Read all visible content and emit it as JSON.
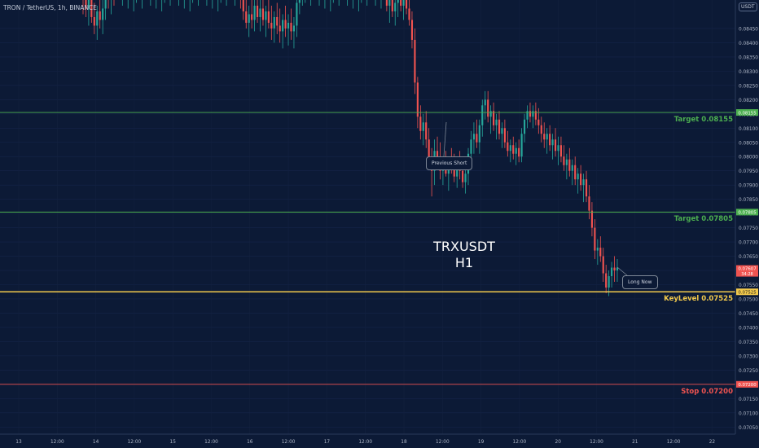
{
  "title": "TRON / TetherUS, 1h, BINANCE",
  "symbol_line1": "TRXUSDT",
  "symbol_line2": "H1",
  "currency_box": "USDT",
  "annotations": {
    "previous_short": "Previous Short",
    "long_now": "Long Now"
  },
  "colors": {
    "background": "#0c1a36",
    "up": "#26a69a",
    "down": "#ef5350",
    "target_line": "#4caf50",
    "keylevel_line": "#f2c94c",
    "stop_line": "#ef5350"
  },
  "chart_data": {
    "type": "candlestick",
    "title": "TRON / TetherUS, 1h, BINANCE",
    "ylim": [
      0.07025,
      0.0855
    ],
    "y_ticks": [
      "0.08450",
      "0.08400",
      "0.08350",
      "0.08300",
      "0.08250",
      "0.08200",
      "0.08150",
      "0.08100",
      "0.08050",
      "0.08000",
      "0.07950",
      "0.07900",
      "0.07850",
      "0.07800",
      "0.07750",
      "0.07700",
      "0.07650",
      "0.07600",
      "0.07550",
      "0.07500",
      "0.07450",
      "0.07400",
      "0.07350",
      "0.07300",
      "0.07250",
      "0.07200",
      "0.07150",
      "0.07100",
      "0.07050"
    ],
    "x_ticks": [
      "13",
      "12:00",
      "14",
      "12:00",
      "15",
      "12:00",
      "16",
      "12:00",
      "17",
      "12:00",
      "18",
      "12:00",
      "19",
      "12:00",
      "20",
      "12:00",
      "21",
      "12:00",
      "22"
    ],
    "horizontal_levels": [
      {
        "label": "Target 0.08155",
        "value": 0.08155,
        "tag": "0.08155",
        "kind": "target"
      },
      {
        "label": "Target 0.07805",
        "value": 0.07805,
        "tag": "0.07805",
        "kind": "target"
      },
      {
        "label": "KeyLevel 0.07525",
        "value": 0.07525,
        "tag": "0.07525",
        "kind": "keylevel"
      },
      {
        "label": "Stop 0.07200",
        "value": 0.072,
        "tag": "0.07200",
        "kind": "stop"
      }
    ],
    "current_price": {
      "value": 0.07607,
      "tag": "0.07607",
      "countdown": "34:28"
    },
    "candles": [
      [
        0.0857,
        0.0862,
        0.085,
        0.0855
      ],
      [
        0.0855,
        0.086,
        0.0849,
        0.0852
      ],
      [
        0.0852,
        0.0858,
        0.0846,
        0.0856
      ],
      [
        0.0856,
        0.0861,
        0.0847,
        0.0849
      ],
      [
        0.0849,
        0.0854,
        0.0843,
        0.0846
      ],
      [
        0.0846,
        0.0853,
        0.0841,
        0.0851
      ],
      [
        0.0851,
        0.0858,
        0.0845,
        0.0848
      ],
      [
        0.0848,
        0.0855,
        0.0843,
        0.0852
      ],
      [
        0.0852,
        0.086,
        0.0848,
        0.0857
      ],
      [
        0.0857,
        0.0863,
        0.0852,
        0.0855
      ],
      [
        0.0855,
        0.0862,
        0.085,
        0.0859
      ],
      [
        0.0859,
        0.0865,
        0.0853,
        0.0856
      ],
      [
        0.086,
        0.0866,
        0.0855,
        0.0862
      ],
      [
        0.0862,
        0.0867,
        0.0857,
        0.0859
      ],
      [
        0.0859,
        0.0864,
        0.0853,
        0.0861
      ],
      [
        0.0861,
        0.0866,
        0.0856,
        0.0858
      ],
      [
        0.0858,
        0.0864,
        0.0852,
        0.086
      ],
      [
        0.086,
        0.0865,
        0.0855,
        0.0857
      ],
      [
        0.0857,
        0.0863,
        0.0851,
        0.0859
      ],
      [
        0.0859,
        0.0865,
        0.0854,
        0.0861
      ],
      [
        0.0861,
        0.0866,
        0.0856,
        0.0858
      ],
      [
        0.0858,
        0.0863,
        0.0852,
        0.086
      ],
      [
        0.086,
        0.0866,
        0.0855,
        0.0862
      ],
      [
        0.0862,
        0.0867,
        0.0857,
        0.0859
      ],
      [
        0.0859,
        0.0864,
        0.0853,
        0.0861
      ],
      [
        0.0861,
        0.0866,
        0.0856,
        0.0858
      ],
      [
        0.0858,
        0.0864,
        0.0852,
        0.086
      ],
      [
        0.086,
        0.0865,
        0.0855,
        0.0857
      ],
      [
        0.0857,
        0.0862,
        0.0851,
        0.0859
      ],
      [
        0.0859,
        0.0864,
        0.0854,
        0.0861
      ],
      [
        0.0861,
        0.0866,
        0.0856,
        0.0858
      ],
      [
        0.0858,
        0.0863,
        0.0853,
        0.086
      ],
      [
        0.086,
        0.0866,
        0.0855,
        0.0862
      ],
      [
        0.0862,
        0.0867,
        0.0857,
        0.0859
      ],
      [
        0.0859,
        0.0864,
        0.0853,
        0.0861
      ],
      [
        0.0861,
        0.0866,
        0.0856,
        0.0858
      ],
      [
        0.0858,
        0.0864,
        0.0852,
        0.086
      ],
      [
        0.086,
        0.0865,
        0.0855,
        0.0857
      ],
      [
        0.0857,
        0.0862,
        0.0851,
        0.0859
      ],
      [
        0.0859,
        0.0864,
        0.0854,
        0.0861
      ],
      [
        0.0861,
        0.0866,
        0.0856,
        0.0858
      ],
      [
        0.0858,
        0.0863,
        0.0853,
        0.086
      ],
      [
        0.086,
        0.0866,
        0.0855,
        0.0862
      ],
      [
        0.0862,
        0.0867,
        0.0857,
        0.0859
      ],
      [
        0.0859,
        0.0864,
        0.0853,
        0.0861
      ],
      [
        0.0861,
        0.0866,
        0.0856,
        0.0858
      ],
      [
        0.0858,
        0.0864,
        0.0852,
        0.086
      ],
      [
        0.086,
        0.0865,
        0.0855,
        0.0857
      ],
      [
        0.0857,
        0.0862,
        0.0851,
        0.0859
      ],
      [
        0.0859,
        0.0864,
        0.0854,
        0.0861
      ],
      [
        0.0861,
        0.0866,
        0.0856,
        0.0858
      ],
      [
        0.0858,
        0.0863,
        0.0853,
        0.086
      ],
      [
        0.086,
        0.0866,
        0.0855,
        0.0862
      ],
      [
        0.0862,
        0.0867,
        0.0857,
        0.0859
      ],
      [
        0.0859,
        0.0864,
        0.0853,
        0.0861
      ],
      [
        0.0861,
        0.0866,
        0.0856,
        0.0858
      ],
      [
        0.0858,
        0.0863,
        0.0852,
        0.0855
      ],
      [
        0.0855,
        0.086,
        0.0848,
        0.0851
      ],
      [
        0.0851,
        0.0856,
        0.0845,
        0.0847
      ],
      [
        0.0847,
        0.0853,
        0.0842,
        0.085
      ],
      [
        0.085,
        0.0855,
        0.0845,
        0.0848
      ],
      [
        0.0848,
        0.0856,
        0.0844,
        0.0853
      ],
      [
        0.0853,
        0.0858,
        0.0847,
        0.0849
      ],
      [
        0.0849,
        0.0855,
        0.0844,
        0.0852
      ],
      [
        0.0852,
        0.0857,
        0.0846,
        0.0848
      ],
      [
        0.0848,
        0.0853,
        0.0842,
        0.0851
      ],
      [
        0.0851,
        0.0856,
        0.0845,
        0.0847
      ],
      [
        0.0847,
        0.0853,
        0.0841,
        0.0845
      ],
      [
        0.0845,
        0.0851,
        0.084,
        0.0849
      ],
      [
        0.0849,
        0.0854,
        0.0843,
        0.0846
      ],
      [
        0.0846,
        0.0852,
        0.084,
        0.0844
      ],
      [
        0.0844,
        0.085,
        0.0838,
        0.0848
      ],
      [
        0.0848,
        0.0853,
        0.0842,
        0.0845
      ],
      [
        0.0845,
        0.085,
        0.0839,
        0.0847
      ],
      [
        0.0847,
        0.0852,
        0.0841,
        0.0844
      ],
      [
        0.0844,
        0.0849,
        0.0838,
        0.0846
      ],
      [
        0.0846,
        0.0856,
        0.0842,
        0.0854
      ],
      [
        0.0854,
        0.086,
        0.085,
        0.0857
      ],
      [
        0.0857,
        0.0862,
        0.0853,
        0.0859
      ],
      [
        0.0859,
        0.0864,
        0.0854,
        0.0861
      ],
      [
        0.0861,
        0.0866,
        0.0856,
        0.0858
      ],
      [
        0.0858,
        0.0863,
        0.0853,
        0.086
      ],
      [
        0.086,
        0.0865,
        0.0855,
        0.0862
      ],
      [
        0.0862,
        0.0867,
        0.0857,
        0.0859
      ],
      [
        0.0859,
        0.0864,
        0.0853,
        0.0861
      ],
      [
        0.0861,
        0.0866,
        0.0856,
        0.0858
      ],
      [
        0.0858,
        0.0864,
        0.0852,
        0.086
      ],
      [
        0.086,
        0.0865,
        0.0855,
        0.0857
      ],
      [
        0.0857,
        0.0862,
        0.0851,
        0.0859
      ],
      [
        0.0859,
        0.0864,
        0.0854,
        0.0861
      ],
      [
        0.0861,
        0.0866,
        0.0856,
        0.0858
      ],
      [
        0.0858,
        0.0863,
        0.0853,
        0.086
      ],
      [
        0.086,
        0.0866,
        0.0855,
        0.0862
      ],
      [
        0.0862,
        0.0867,
        0.0857,
        0.0859
      ],
      [
        0.0859,
        0.0864,
        0.0853,
        0.0861
      ],
      [
        0.0861,
        0.0866,
        0.0856,
        0.0858
      ],
      [
        0.0858,
        0.0864,
        0.0852,
        0.086
      ],
      [
        0.086,
        0.0865,
        0.0855,
        0.0857
      ],
      [
        0.0857,
        0.0862,
        0.0851,
        0.0859
      ],
      [
        0.0859,
        0.0864,
        0.0854,
        0.0861
      ],
      [
        0.0861,
        0.0866,
        0.0856,
        0.0858
      ],
      [
        0.0858,
        0.0863,
        0.0853,
        0.086
      ],
      [
        0.086,
        0.0866,
        0.0855,
        0.0862
      ],
      [
        0.0862,
        0.0867,
        0.0857,
        0.0859
      ],
      [
        0.0859,
        0.0864,
        0.0853,
        0.0861
      ],
      [
        0.0861,
        0.0866,
        0.0856,
        0.0858
      ],
      [
        0.0858,
        0.0864,
        0.0852,
        0.086
      ],
      [
        0.086,
        0.0865,
        0.0855,
        0.0857
      ],
      [
        0.0857,
        0.0861,
        0.0851,
        0.0853
      ],
      [
        0.0853,
        0.0858,
        0.0847,
        0.0855
      ],
      [
        0.0855,
        0.086,
        0.0849,
        0.0851
      ],
      [
        0.0851,
        0.0857,
        0.0846,
        0.0854
      ],
      [
        0.0854,
        0.0859,
        0.0849,
        0.0856
      ],
      [
        0.0856,
        0.0861,
        0.0851,
        0.0853
      ],
      [
        0.0853,
        0.0858,
        0.0848,
        0.0855
      ],
      [
        0.0855,
        0.086,
        0.085,
        0.0852
      ],
      [
        0.0852,
        0.0856,
        0.0846,
        0.0848
      ],
      [
        0.0848,
        0.0851,
        0.0838,
        0.0841
      ],
      [
        0.0841,
        0.0845,
        0.0822,
        0.0826
      ],
      [
        0.0826,
        0.0828,
        0.081,
        0.0814
      ],
      [
        0.0814,
        0.0818,
        0.0806,
        0.0809
      ],
      [
        0.0809,
        0.0815,
        0.0804,
        0.0812
      ],
      [
        0.0812,
        0.0816,
        0.0803,
        0.0806
      ],
      [
        0.0806,
        0.081,
        0.0796,
        0.0799
      ],
      [
        0.0799,
        0.0803,
        0.0786,
        0.0795
      ],
      [
        0.0795,
        0.0806,
        0.079,
        0.0802
      ],
      [
        0.0802,
        0.0807,
        0.0797,
        0.08
      ],
      [
        0.08,
        0.0805,
        0.0792,
        0.0795
      ],
      [
        0.0795,
        0.08,
        0.079,
        0.0797
      ],
      [
        0.0797,
        0.0802,
        0.0793,
        0.0794
      ],
      [
        0.0794,
        0.08,
        0.0788,
        0.0798
      ],
      [
        0.0798,
        0.0803,
        0.0794,
        0.0796
      ],
      [
        0.0796,
        0.0801,
        0.0791,
        0.0793
      ],
      [
        0.0793,
        0.0799,
        0.0789,
        0.0797
      ],
      [
        0.0797,
        0.0802,
        0.0792,
        0.0795
      ],
      [
        0.0795,
        0.08,
        0.0789,
        0.0791
      ],
      [
        0.0791,
        0.0797,
        0.0787,
        0.0794
      ],
      [
        0.0794,
        0.0803,
        0.079,
        0.0801
      ],
      [
        0.0801,
        0.0809,
        0.0797,
        0.0806
      ],
      [
        0.0806,
        0.0812,
        0.0801,
        0.0808
      ],
      [
        0.0808,
        0.0813,
        0.0803,
        0.0805
      ],
      [
        0.0805,
        0.0813,
        0.0801,
        0.0811
      ],
      [
        0.0811,
        0.082,
        0.0807,
        0.0818
      ],
      [
        0.0818,
        0.0823,
        0.0813,
        0.082
      ],
      [
        0.082,
        0.0823,
        0.0812,
        0.0814
      ],
      [
        0.0814,
        0.0818,
        0.0808,
        0.0816
      ],
      [
        0.0816,
        0.0819,
        0.0809,
        0.0811
      ],
      [
        0.0811,
        0.0815,
        0.0806,
        0.0813
      ],
      [
        0.0813,
        0.0816,
        0.0806,
        0.0808
      ],
      [
        0.0808,
        0.0812,
        0.0803,
        0.081
      ],
      [
        0.081,
        0.0813,
        0.0803,
        0.0805
      ],
      [
        0.0805,
        0.0809,
        0.08,
        0.0802
      ],
      [
        0.0802,
        0.0806,
        0.0798,
        0.0804
      ],
      [
        0.0804,
        0.0807,
        0.0799,
        0.0801
      ],
      [
        0.0801,
        0.0805,
        0.0797,
        0.0803
      ],
      [
        0.0803,
        0.0806,
        0.0798,
        0.08
      ],
      [
        0.08,
        0.081,
        0.0798,
        0.0808
      ],
      [
        0.0808,
        0.0815,
        0.0805,
        0.0813
      ],
      [
        0.0813,
        0.0818,
        0.081,
        0.0816
      ],
      [
        0.0816,
        0.0819,
        0.0812,
        0.0814
      ],
      [
        0.0814,
        0.0818,
        0.081,
        0.0816
      ],
      [
        0.0816,
        0.0819,
        0.0811,
        0.0813
      ],
      [
        0.0813,
        0.0817,
        0.0808,
        0.0811
      ],
      [
        0.0811,
        0.0814,
        0.0805,
        0.0808
      ],
      [
        0.0808,
        0.0812,
        0.0803,
        0.0806
      ],
      [
        0.0806,
        0.081,
        0.0801,
        0.0808
      ],
      [
        0.0808,
        0.0811,
        0.0802,
        0.0804
      ],
      [
        0.0804,
        0.0808,
        0.0799,
        0.0806
      ],
      [
        0.0806,
        0.081,
        0.08,
        0.0802
      ],
      [
        0.0802,
        0.0807,
        0.0797,
        0.0804
      ],
      [
        0.0804,
        0.0807,
        0.0798,
        0.08
      ],
      [
        0.08,
        0.0804,
        0.0795,
        0.0797
      ],
      [
        0.0797,
        0.0801,
        0.0792,
        0.0799
      ],
      [
        0.0799,
        0.0803,
        0.0793,
        0.0795
      ],
      [
        0.0795,
        0.0799,
        0.079,
        0.0797
      ],
      [
        0.0797,
        0.08,
        0.079,
        0.0792
      ],
      [
        0.0792,
        0.0796,
        0.0787,
        0.0794
      ],
      [
        0.0794,
        0.0797,
        0.0788,
        0.079
      ],
      [
        0.079,
        0.0794,
        0.0784,
        0.0792
      ],
      [
        0.0792,
        0.0795,
        0.0784,
        0.0786
      ],
      [
        0.0786,
        0.079,
        0.0778,
        0.0781
      ],
      [
        0.0781,
        0.0784,
        0.0772,
        0.0775
      ],
      [
        0.0775,
        0.0778,
        0.0764,
        0.0767
      ],
      [
        0.0767,
        0.0771,
        0.0762,
        0.0768
      ],
      [
        0.0768,
        0.0772,
        0.0763,
        0.0765
      ],
      [
        0.0765,
        0.0768,
        0.0756,
        0.0759
      ],
      [
        0.0759,
        0.0762,
        0.0752,
        0.0754
      ],
      [
        0.0754,
        0.076,
        0.0751,
        0.0758
      ],
      [
        0.0758,
        0.0763,
        0.0754,
        0.0761
      ],
      [
        0.0761,
        0.0765,
        0.0756,
        0.076
      ],
      [
        0.076,
        0.0764,
        0.0756,
        0.0761
      ]
    ]
  }
}
